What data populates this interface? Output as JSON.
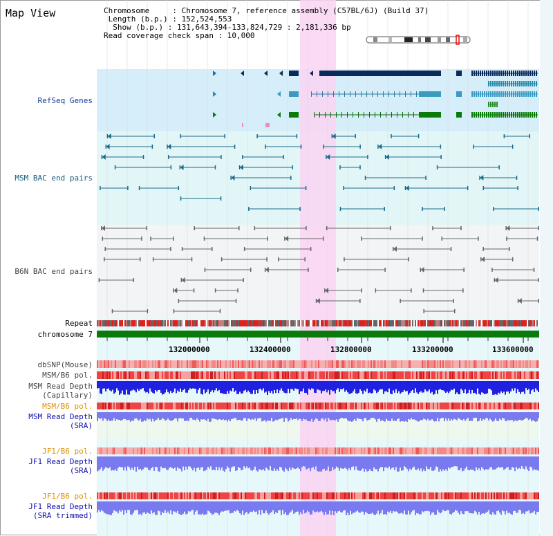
{
  "view_title": "Map View",
  "info": {
    "chromosome": "Chromosome     : Chromosome 7, reference assembly (C57BL/6J) (Build 37)",
    "length": " Length (b.p.) : 152,524,553",
    "show": "  Show (b.p.) : 131,643,394-133,824,729 : 2,181,336 bp",
    "coverage": "Read coverage check span : 10,000"
  },
  "tracks": {
    "refseq": "RefSeq Genes",
    "msm_bac": "MSM BAC end pairs",
    "b6n_bac": "B6N BAC end pairs",
    "repeat": "Repeat",
    "chromosome": "chromosome 7",
    "dbsnp": "dbSNP(Mouse)",
    "msm_b6_pol_1": "MSM/B6 pol.",
    "msm_read_cap_1": "MSM Read Depth",
    "msm_read_cap_2": "(Capillary)",
    "msm_b6_pol_2": "MSM/B6 pol.",
    "msm_read_sra_1": "MSM Read Depth",
    "msm_read_sra_2": "(SRA)",
    "jf1_b6_pol_1": "JF1/B6 pol.",
    "jf1_read_sra_1": "JF1 Read Depth",
    "jf1_read_sra_2": "(SRA)",
    "jf1_b6_pol_2": "JF1/B6 pol.",
    "jf1_read_trim_1": "JF1 Read Depth",
    "jf1_read_trim_2": "(SRA trimmed)"
  },
  "axis_ticks": [
    "132000000",
    "132400000",
    "132800000",
    "133200000",
    "133600000"
  ],
  "colors": {
    "refseq_bg": "#d6eefa",
    "msm_bg": "#e2f6f8",
    "b6n_bg": "#f3f4f6",
    "highlight": "#f9d4f2",
    "chrom_green": "#0a7a0a",
    "depth_blue": "#2020e0",
    "depth_violet": "#7a7af0",
    "pol_red": "#ee4444"
  }
}
